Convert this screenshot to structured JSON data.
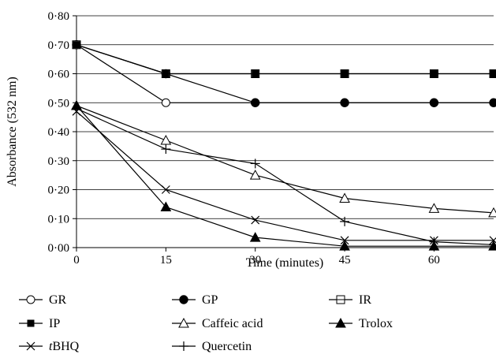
{
  "chart_data": {
    "type": "line",
    "xlabel": "Time (minutes)",
    "ylabel": "Absorbance (532 nm)",
    "xlim": [
      0,
      70
    ],
    "ylim": [
      0,
      0.8
    ],
    "x_ticks": [
      0,
      15,
      30,
      45,
      60
    ],
    "x_tick_labels": [
      "0",
      "15",
      "30",
      "45",
      "60"
    ],
    "y_ticks": [
      0,
      0.1,
      0.2,
      0.3,
      0.4,
      0.5,
      0.6,
      0.7,
      0.8
    ],
    "y_tick_labels": [
      "0·00",
      "0·10",
      "0·20",
      "0·30",
      "0·40",
      "0·50",
      "0·60",
      "0·70",
      "0·80"
    ],
    "grid": "horizontal",
    "legend_position": "bottom",
    "series": [
      {
        "name": "GR",
        "marker": "circle-open",
        "x": [
          0,
          15,
          30,
          45,
          60,
          70
        ],
        "values": [
          0.7,
          0.5,
          0.5,
          0.5,
          0.5,
          0.5
        ]
      },
      {
        "name": "GP",
        "marker": "circle-filled",
        "x": [
          0,
          15,
          30,
          45,
          60,
          70
        ],
        "values": [
          0.7,
          0.6,
          0.5,
          0.5,
          0.5,
          0.5
        ]
      },
      {
        "name": "IR",
        "marker": "square-open",
        "x": [
          0,
          15,
          30,
          45,
          60,
          70
        ],
        "values": [
          0.7,
          0.6,
          0.6,
          0.6,
          0.6,
          0.6
        ]
      },
      {
        "name": "IP",
        "marker": "square-filled",
        "x": [
          0,
          15,
          30,
          45,
          60,
          70
        ],
        "values": [
          0.7,
          0.6,
          0.6,
          0.6,
          0.6,
          0.6
        ]
      },
      {
        "name": "Caffeic acid",
        "marker": "triangle-open",
        "x": [
          0,
          15,
          30,
          45,
          60,
          70
        ],
        "values": [
          0.49,
          0.37,
          0.25,
          0.17,
          0.135,
          0.12
        ]
      },
      {
        "name": "Trolox",
        "marker": "triangle-filled",
        "x": [
          0,
          15,
          30,
          45,
          60,
          70
        ],
        "values": [
          0.49,
          0.14,
          0.035,
          0.005,
          0.005,
          0.005
        ]
      },
      {
        "name_prefix": "t",
        "name": "BHQ",
        "marker": "x",
        "x": [
          0,
          15,
          30,
          45,
          60,
          70
        ],
        "values": [
          0.47,
          0.2,
          0.095,
          0.025,
          0.025,
          0.025
        ]
      },
      {
        "name": "Quercetin",
        "marker": "plus",
        "x": [
          0,
          15,
          30,
          45,
          60,
          70
        ],
        "values": [
          0.48,
          0.34,
          0.29,
          0.09,
          0.02,
          0.01
        ]
      }
    ]
  }
}
